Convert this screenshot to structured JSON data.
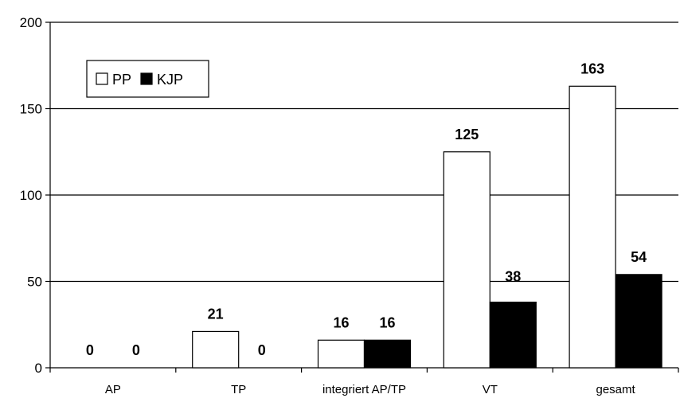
{
  "chart_data": {
    "type": "bar",
    "categories": [
      "AP",
      "TP",
      "integriert AP/TP",
      "VT",
      "gesamt"
    ],
    "series": [
      {
        "name": "PP",
        "values": [
          0,
          21,
          16,
          125,
          163
        ],
        "color": "#ffffff"
      },
      {
        "name": "KJP",
        "values": [
          0,
          0,
          16,
          38,
          54
        ],
        "color": "#000000"
      }
    ],
    "ylim": [
      0,
      200
    ],
    "yticks": [
      0,
      50,
      100,
      150,
      200
    ],
    "grid": true,
    "legend": "top-left",
    "data_labels": true
  }
}
